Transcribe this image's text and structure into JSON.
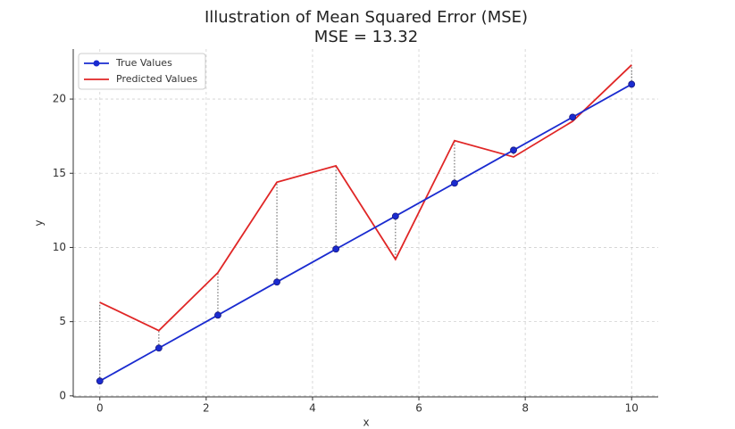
{
  "chart_data": {
    "type": "line",
    "title": "Illustration of Mean Squared Error (MSE)",
    "subtitle": "MSE = 13.32",
    "x_label": "x",
    "y_label": "y",
    "x": [
      0,
      1.11,
      2.22,
      3.33,
      4.44,
      5.56,
      6.67,
      7.78,
      8.89,
      10
    ],
    "series": [
      {
        "name": "True Values",
        "color": "#1a2bd0",
        "marker": true,
        "values": [
          1,
          3.22,
          5.44,
          7.67,
          9.89,
          12.11,
          14.33,
          16.56,
          18.78,
          21
        ]
      },
      {
        "name": "Predicted Values",
        "color": "#e02626",
        "marker": false,
        "values": [
          6.3,
          4.4,
          8.3,
          14.4,
          15.5,
          9.2,
          17.2,
          16.1,
          18.5,
          22.3
        ]
      }
    ],
    "residuals": true,
    "xlim": [
      -0.5,
      10.5
    ],
    "xticks": [
      0,
      2,
      4,
      6,
      8,
      10
    ],
    "ylim": [
      -0.07,
      23.37
    ],
    "yticks": [
      0,
      5,
      10,
      15,
      20
    ],
    "grid": true,
    "legend": "upper left"
  }
}
